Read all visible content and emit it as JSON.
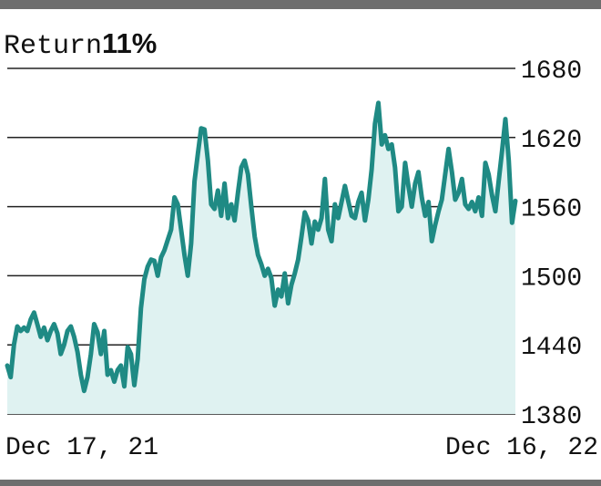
{
  "title": "Return",
  "return_value": "11%",
  "colors": {
    "line": "#1f8a84",
    "fill": "#dff2f1",
    "grid": "#222222",
    "bars": "#6e6e6e"
  },
  "chart_data": {
    "type": "area",
    "title": "Return 11%",
    "ylim": [
      1380,
      1680
    ],
    "yticks": [
      1680,
      1620,
      1560,
      1500,
      1440,
      1380
    ],
    "xlabels": [
      "Dec 17, 21",
      "Dec 16, 22"
    ],
    "grid": true,
    "values": [
      1422,
      1412,
      1440,
      1456,
      1452,
      1455,
      1452,
      1462,
      1468,
      1458,
      1447,
      1455,
      1444,
      1452,
      1458,
      1450,
      1432,
      1440,
      1452,
      1456,
      1447,
      1434,
      1414,
      1400,
      1412,
      1432,
      1458,
      1451,
      1432,
      1452,
      1414,
      1418,
      1408,
      1418,
      1422,
      1404,
      1438,
      1432,
      1405,
      1428,
      1472,
      1497,
      1508,
      1514,
      1513,
      1500,
      1516,
      1522,
      1531,
      1540,
      1568,
      1562,
      1540,
      1518,
      1500,
      1528,
      1582,
      1606,
      1628,
      1627,
      1600,
      1562,
      1558,
      1574,
      1552,
      1580,
      1550,
      1562,
      1548,
      1572,
      1594,
      1600,
      1588,
      1560,
      1534,
      1518,
      1510,
      1500,
      1506,
      1498,
      1474,
      1488,
      1482,
      1502,
      1476,
      1492,
      1502,
      1514,
      1534,
      1555,
      1548,
      1528,
      1547,
      1540,
      1550,
      1584,
      1540,
      1530,
      1562,
      1550,
      1564,
      1578,
      1565,
      1552,
      1550,
      1564,
      1572,
      1548,
      1566,
      1592,
      1632,
      1650,
      1614,
      1622,
      1610,
      1614,
      1594,
      1556,
      1560,
      1598,
      1578,
      1560,
      1580,
      1590,
      1568,
      1552,
      1564,
      1530,
      1544,
      1556,
      1566,
      1588,
      1610,
      1590,
      1566,
      1572,
      1584,
      1562,
      1558,
      1564,
      1556,
      1568,
      1552,
      1598,
      1588,
      1570,
      1556,
      1582,
      1608,
      1636,
      1600,
      1546,
      1565
    ]
  }
}
